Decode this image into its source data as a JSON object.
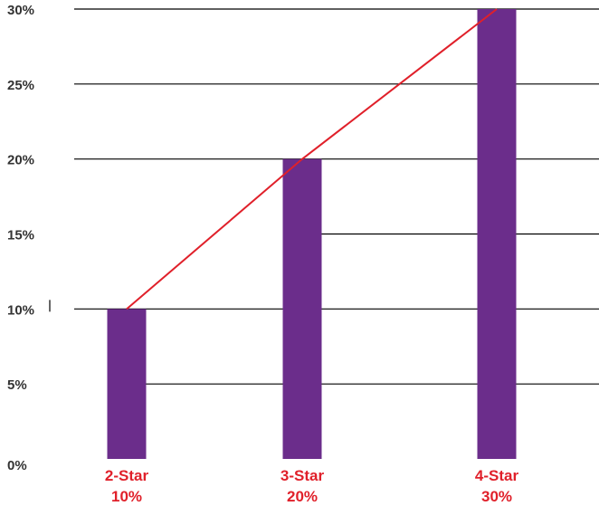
{
  "chart_data": {
    "type": "bar",
    "categories": [
      "2-Star",
      "3-Star",
      "4-Star"
    ],
    "values": [
      10,
      20,
      30
    ],
    "data_labels": [
      "10%",
      "20%",
      "30%"
    ],
    "ylim": [
      0,
      30
    ],
    "yticks": [
      0,
      5,
      10,
      15,
      20,
      25,
      30
    ],
    "ytick_labels": [
      "0%",
      "5%",
      "10%",
      "15%",
      "20%",
      "25%",
      "30%"
    ],
    "title": "",
    "xlabel": "",
    "ylabel": "",
    "grid": true,
    "trend_line": true,
    "colors": {
      "bar": "#6b2d8b",
      "trend": "#e0202a",
      "category_label": "#e0202a",
      "grid": "#000000"
    }
  }
}
